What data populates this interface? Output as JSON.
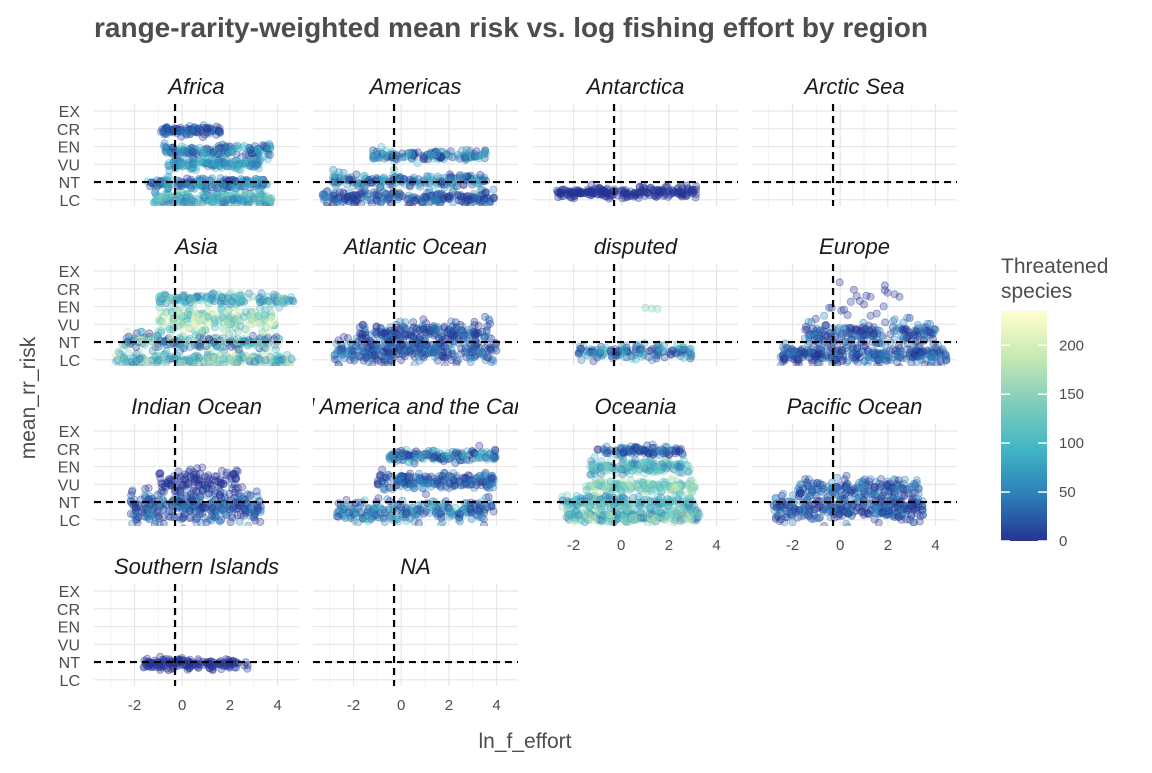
{
  "chart_data": {
    "type": "scatter",
    "title": "range-rarity-weighted mean risk vs. log fishing effort by region",
    "xlabel": "ln_f_effort",
    "ylabel": "mean_rr_risk",
    "x_ticks": [
      -2,
      0,
      2,
      4
    ],
    "xlim": [
      -3.7,
      4.9
    ],
    "y_categories": [
      "LC",
      "NT",
      "VU",
      "EN",
      "CR",
      "EX"
    ],
    "ylim": [
      -0.35,
      5.4
    ],
    "reference_lines": {
      "x": -0.3,
      "y": 1
    },
    "grid": true,
    "legend": {
      "title_lines": [
        "Threatened",
        "species"
      ],
      "ticks": [
        0,
        50,
        100,
        150,
        200
      ],
      "range": [
        0,
        235
      ],
      "position": "right",
      "colors": [
        "#253494",
        "#2c7fb8",
        "#41b6c4",
        "#7fcdbb",
        "#c7e9b4",
        "#ffffcc"
      ]
    },
    "panels": [
      {
        "name": "Africa",
        "clusters": [
          {
            "y": 0.05,
            "sd": 0.18,
            "x_min": -1.2,
            "x_max": 3.8,
            "n": 240,
            "colors": [
              "#41b6c4",
              "#2c7fb8",
              "#7fcdbb"
            ]
          },
          {
            "y": 0.9,
            "sd": 0.15,
            "x_min": -1.5,
            "x_max": 3.6,
            "n": 200,
            "colors": [
              "#2c7fb8",
              "#253494",
              "#41b6c4"
            ]
          },
          {
            "y": 2.0,
            "sd": 0.16,
            "x_min": -0.6,
            "x_max": 3.3,
            "n": 150,
            "colors": [
              "#41b6c4",
              "#2c7fb8"
            ]
          },
          {
            "y": 2.8,
            "sd": 0.18,
            "x_min": -0.8,
            "x_max": 3.8,
            "n": 160,
            "colors": [
              "#2c7fb8",
              "#41b6c4",
              "#253494"
            ]
          },
          {
            "y": 3.9,
            "sd": 0.15,
            "x_min": -0.9,
            "x_max": 1.7,
            "n": 100,
            "colors": [
              "#253494",
              "#2c7fb8"
            ]
          }
        ]
      },
      {
        "name": "Americas",
        "clusters": [
          {
            "y": 0.1,
            "sd": 0.2,
            "x_min": -3.3,
            "x_max": 3.9,
            "n": 240,
            "colors": [
              "#253494",
              "#2c7fb8"
            ]
          },
          {
            "y": 1.1,
            "sd": 0.18,
            "x_min": -3.0,
            "x_max": 3.7,
            "n": 200,
            "colors": [
              "#253494",
              "#2c7fb8",
              "#41b6c4"
            ]
          },
          {
            "y": 2.5,
            "sd": 0.14,
            "x_min": -1.2,
            "x_max": 3.6,
            "n": 150,
            "colors": [
              "#2c7fb8",
              "#41b6c4",
              "#253494"
            ]
          }
        ]
      },
      {
        "name": "Antarctica",
        "clusters": [
          {
            "y": 0.4,
            "sd": 0.16,
            "x_min": -2.7,
            "x_max": 3.2,
            "n": 220,
            "colors": [
              "#253494"
            ]
          }
        ]
      },
      {
        "name": "Arctic Sea",
        "clusters": []
      },
      {
        "name": "Asia",
        "clusters": [
          {
            "y": 0.0,
            "sd": 0.2,
            "x_min": -2.8,
            "x_max": 4.6,
            "n": 240,
            "colors": [
              "#41b6c4",
              "#7fcdbb",
              "#2c7fb8",
              "#c7e9b4"
            ]
          },
          {
            "y": 1.0,
            "sd": 0.2,
            "x_min": -2.5,
            "x_max": 4.1,
            "n": 200,
            "colors": [
              "#41b6c4",
              "#2c7fb8",
              "#c7e9b4",
              "#253494"
            ]
          },
          {
            "y": 2.3,
            "sd": 0.35,
            "x_min": -1.0,
            "x_max": 3.9,
            "n": 240,
            "colors": [
              "#c7e9b4",
              "#ffffcc",
              "#7fcdbb",
              "#41b6c4"
            ]
          },
          {
            "y": 3.4,
            "sd": 0.15,
            "x_min": -1.0,
            "x_max": 4.7,
            "n": 160,
            "colors": [
              "#41b6c4",
              "#2c7fb8",
              "#7fcdbb"
            ]
          }
        ]
      },
      {
        "name": "Atlantic Ocean",
        "clusters": [
          {
            "y": 0.5,
            "sd": 0.35,
            "x_min": -2.8,
            "x_max": 4.0,
            "n": 320,
            "colors": [
              "#253494",
              "#2c7fb8"
            ]
          },
          {
            "y": 1.6,
            "sd": 0.3,
            "x_min": -1.8,
            "x_max": 3.8,
            "n": 200,
            "colors": [
              "#253494",
              "#2c7fb8"
            ]
          }
        ]
      },
      {
        "name": "disputed",
        "clusters": [
          {
            "y": 0.4,
            "sd": 0.18,
            "x_min": -1.8,
            "x_max": 3.0,
            "n": 150,
            "colors": [
              "#2c7fb8",
              "#253494",
              "#41b6c4"
            ]
          },
          {
            "y": 2.9,
            "sd": 0.05,
            "x_min": 1.0,
            "x_max": 1.6,
            "n": 3,
            "colors": [
              "#7fcdbb",
              "#41b6c4"
            ]
          }
        ]
      },
      {
        "name": "Europe",
        "clusters": [
          {
            "y": 0.3,
            "sd": 0.25,
            "x_min": -2.5,
            "x_max": 4.5,
            "n": 300,
            "colors": [
              "#253494",
              "#2c7fb8"
            ]
          },
          {
            "y": 1.5,
            "sd": 0.35,
            "x_min": -1.5,
            "x_max": 4.0,
            "n": 200,
            "colors": [
              "#253494",
              "#2c7fb8"
            ]
          },
          {
            "y": 3.4,
            "sd": 0.5,
            "x_min": -1.2,
            "x_max": 2.5,
            "n": 22,
            "colors": [
              "#253494"
            ]
          }
        ]
      },
      {
        "name": "Indian Ocean",
        "clusters": [
          {
            "y": 0.7,
            "sd": 0.45,
            "x_min": -2.2,
            "x_max": 3.3,
            "n": 320,
            "colors": [
              "#253494",
              "#2c7fb8"
            ]
          },
          {
            "y": 2.1,
            "sd": 0.35,
            "x_min": -1.0,
            "x_max": 2.4,
            "n": 120,
            "colors": [
              "#253494"
            ]
          }
        ]
      },
      {
        "name": "Central America and the Caribbean",
        "clusters": [
          {
            "y": 0.5,
            "sd": 0.3,
            "x_min": -2.8,
            "x_max": 3.9,
            "n": 260,
            "colors": [
              "#2c7fb8",
              "#253494",
              "#41b6c4"
            ]
          },
          {
            "y": 2.2,
            "sd": 0.25,
            "x_min": -1.0,
            "x_max": 3.9,
            "n": 200,
            "colors": [
              "#2c7fb8",
              "#253494"
            ]
          },
          {
            "y": 3.6,
            "sd": 0.15,
            "x_min": -0.5,
            "x_max": 4.0,
            "n": 160,
            "colors": [
              "#2c7fb8",
              "#41b6c4",
              "#253494"
            ]
          }
        ]
      },
      {
        "name": "Oceania",
        "clusters": [
          {
            "y": 0.2,
            "sd": 0.18,
            "x_min": -2.3,
            "x_max": 3.3,
            "n": 260,
            "colors": [
              "#7fcdbb",
              "#c7e9b4",
              "#41b6c4",
              "#2c7fb8"
            ]
          },
          {
            "y": 1.0,
            "sd": 0.2,
            "x_min": -2.5,
            "x_max": 3.0,
            "n": 200,
            "colors": [
              "#2c7fb8",
              "#41b6c4",
              "#7fcdbb"
            ]
          },
          {
            "y": 1.9,
            "sd": 0.18,
            "x_min": -1.5,
            "x_max": 3.1,
            "n": 160,
            "colors": [
              "#41b6c4",
              "#7fcdbb",
              "#c7e9b4"
            ]
          },
          {
            "y": 3.0,
            "sd": 0.2,
            "x_min": -1.3,
            "x_max": 2.9,
            "n": 160,
            "colors": [
              "#2c7fb8",
              "#41b6c4",
              "#7fcdbb"
            ]
          },
          {
            "y": 3.9,
            "sd": 0.12,
            "x_min": -1.0,
            "x_max": 2.6,
            "n": 100,
            "colors": [
              "#2c7fb8",
              "#253494"
            ]
          }
        ]
      },
      {
        "name": "Pacific Ocean",
        "clusters": [
          {
            "y": 0.6,
            "sd": 0.35,
            "x_min": -2.8,
            "x_max": 3.5,
            "n": 320,
            "colors": [
              "#253494",
              "#2c7fb8"
            ]
          },
          {
            "y": 1.7,
            "sd": 0.3,
            "x_min": -1.8,
            "x_max": 3.3,
            "n": 180,
            "colors": [
              "#253494",
              "#2c7fb8"
            ]
          }
        ]
      },
      {
        "name": "Southern Islands",
        "clusters": [
          {
            "y": 0.9,
            "sd": 0.15,
            "x_min": -1.7,
            "x_max": 2.8,
            "n": 160,
            "colors": [
              "#253494"
            ]
          }
        ]
      },
      {
        "name": "NA",
        "clusters": []
      }
    ]
  }
}
